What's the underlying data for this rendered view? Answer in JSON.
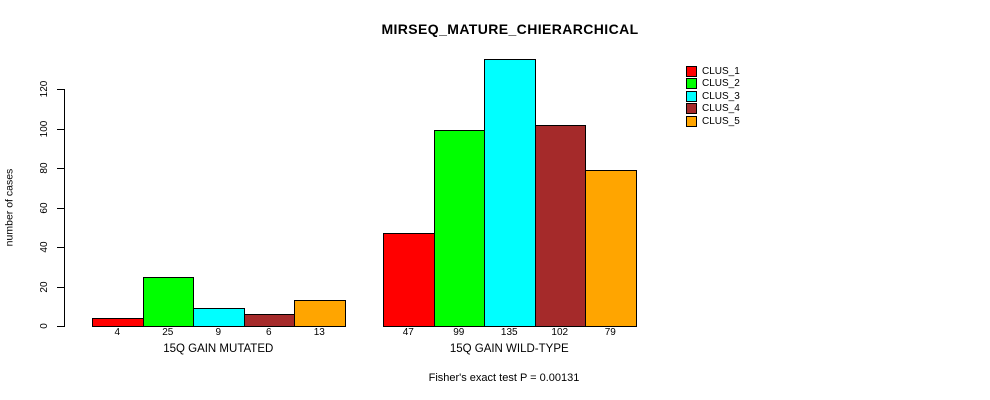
{
  "chart_data": {
    "type": "bar",
    "title": "MIRSEQ_MATURE_CHIERARCHICAL",
    "ylabel": "number of cases",
    "xlabel": "",
    "annotation": "Fisher's exact test P = 0.00131",
    "ylim": [
      0,
      135
    ],
    "y_ticks": [
      0,
      20,
      40,
      60,
      80,
      100,
      120
    ],
    "grid": false,
    "legend_position": "top-right",
    "bar_border_color": "#000000",
    "series_names": [
      "CLUS_1",
      "CLUS_2",
      "CLUS_3",
      "CLUS_4",
      "CLUS_5"
    ],
    "colors": [
      "#FF0000",
      "#00FF00",
      "#00FFFF",
      "#A52A2A",
      "#FFA500"
    ],
    "groups": [
      {
        "label": "15Q GAIN MUTATED",
        "values": [
          4,
          25,
          9,
          6,
          13
        ]
      },
      {
        "label": "15Q GAIN WILD-TYPE",
        "values": [
          47,
          99,
          135,
          102,
          79
        ]
      }
    ]
  }
}
